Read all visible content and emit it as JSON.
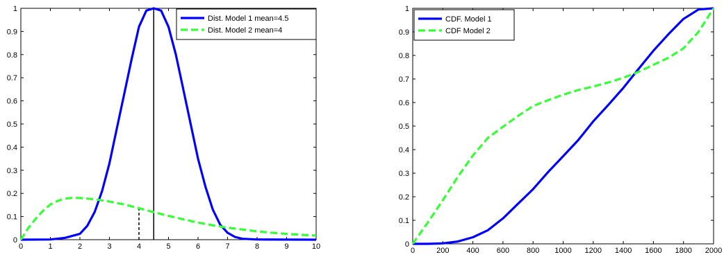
{
  "chart_data": [
    {
      "type": "line",
      "title": "",
      "xlabel": "",
      "ylabel": "",
      "xlim": [
        0,
        10
      ],
      "ylim": [
        0,
        1
      ],
      "xticks": [
        "0",
        "1",
        "2",
        "3",
        "4",
        "5",
        "6",
        "7",
        "8",
        "9",
        "10"
      ],
      "yticks": [
        "0",
        "0.1",
        "0.2",
        "0.3",
        "0.4",
        "0.5",
        "0.6",
        "0.7",
        "0.8",
        "0.9",
        "1"
      ],
      "grid": false,
      "legend_position": "top-right",
      "series": [
        {
          "name": "Dist. Model 1 mean=4.5",
          "color": "#0000ff",
          "style": "solid",
          "x": [
            0,
            1,
            1.5,
            2,
            2.25,
            2.5,
            2.75,
            3,
            3.25,
            3.5,
            3.75,
            4,
            4.25,
            4.5,
            4.75,
            5,
            5.25,
            5.5,
            5.75,
            6,
            6.25,
            6.5,
            6.75,
            7,
            7.25,
            7.5,
            8,
            10
          ],
          "y": [
            0,
            0.001,
            0.008,
            0.025,
            0.06,
            0.12,
            0.21,
            0.33,
            0.48,
            0.63,
            0.78,
            0.92,
            0.99,
            1,
            0.99,
            0.92,
            0.8,
            0.65,
            0.5,
            0.35,
            0.23,
            0.13,
            0.065,
            0.03,
            0.012,
            0.004,
            0.001,
            0
          ]
        },
        {
          "name": "Dist. Model 2 mean=4",
          "color": "#33ff33",
          "style": "dashed",
          "x": [
            0,
            0.25,
            0.5,
            0.75,
            1,
            1.25,
            1.5,
            1.75,
            2,
            2.5,
            3,
            3.5,
            4,
            4.5,
            5,
            5.5,
            6,
            6.5,
            7,
            7.5,
            8,
            8.5,
            9,
            9.5,
            10
          ],
          "y": [
            0,
            0.05,
            0.09,
            0.125,
            0.152,
            0.168,
            0.177,
            0.181,
            0.18,
            0.175,
            0.165,
            0.152,
            0.136,
            0.119,
            0.103,
            0.088,
            0.074,
            0.062,
            0.052,
            0.044,
            0.036,
            0.03,
            0.025,
            0.021,
            0.018
          ]
        }
      ],
      "vlines": [
        {
          "x": 4.5,
          "y0": 0,
          "y1": 1,
          "style": "solid",
          "color": "#000000"
        },
        {
          "x": 4,
          "y0": 0,
          "y1": 0.136,
          "style": "dashed",
          "color": "#000000"
        }
      ]
    },
    {
      "type": "line",
      "title": "",
      "xlabel": "",
      "ylabel": "",
      "xlim": [
        0,
        2000
      ],
      "ylim": [
        0,
        1
      ],
      "xticks": [
        "0",
        "200",
        "400",
        "600",
        "800",
        "1000",
        "1200",
        "1400",
        "1600",
        "1800",
        "2000"
      ],
      "yticks": [
        "0",
        "0.1",
        "0.2",
        "0.3",
        "0.4",
        "0.5",
        "0.6",
        "0.7",
        "0.8",
        "0.9",
        "1"
      ],
      "grid": false,
      "legend_position": "top-left",
      "series": [
        {
          "name": "CDF. Model 1",
          "color": "#0000ff",
          "style": "solid",
          "x": [
            0,
            100,
            200,
            300,
            400,
            500,
            600,
            700,
            800,
            900,
            1000,
            1100,
            1200,
            1300,
            1400,
            1500,
            1600,
            1700,
            1800,
            1900,
            2000
          ],
          "y": [
            0,
            0,
            0.002,
            0.01,
            0.028,
            0.058,
            0.108,
            0.17,
            0.232,
            0.305,
            0.372,
            0.44,
            0.52,
            0.59,
            0.662,
            0.742,
            0.82,
            0.89,
            0.955,
            0.995,
            1
          ]
        },
        {
          "name": "CDF Model 2",
          "color": "#33ff33",
          "style": "dashed",
          "x": [
            0,
            100,
            200,
            300,
            400,
            500,
            600,
            700,
            800,
            900,
            1000,
            1100,
            1200,
            1300,
            1400,
            1500,
            1600,
            1700,
            1800,
            1900,
            2000
          ],
          "y": [
            0,
            0.09,
            0.185,
            0.285,
            0.375,
            0.45,
            0.497,
            0.543,
            0.585,
            0.61,
            0.633,
            0.653,
            0.668,
            0.685,
            0.705,
            0.73,
            0.76,
            0.79,
            0.83,
            0.9,
            1
          ]
        }
      ],
      "vlines": []
    }
  ]
}
